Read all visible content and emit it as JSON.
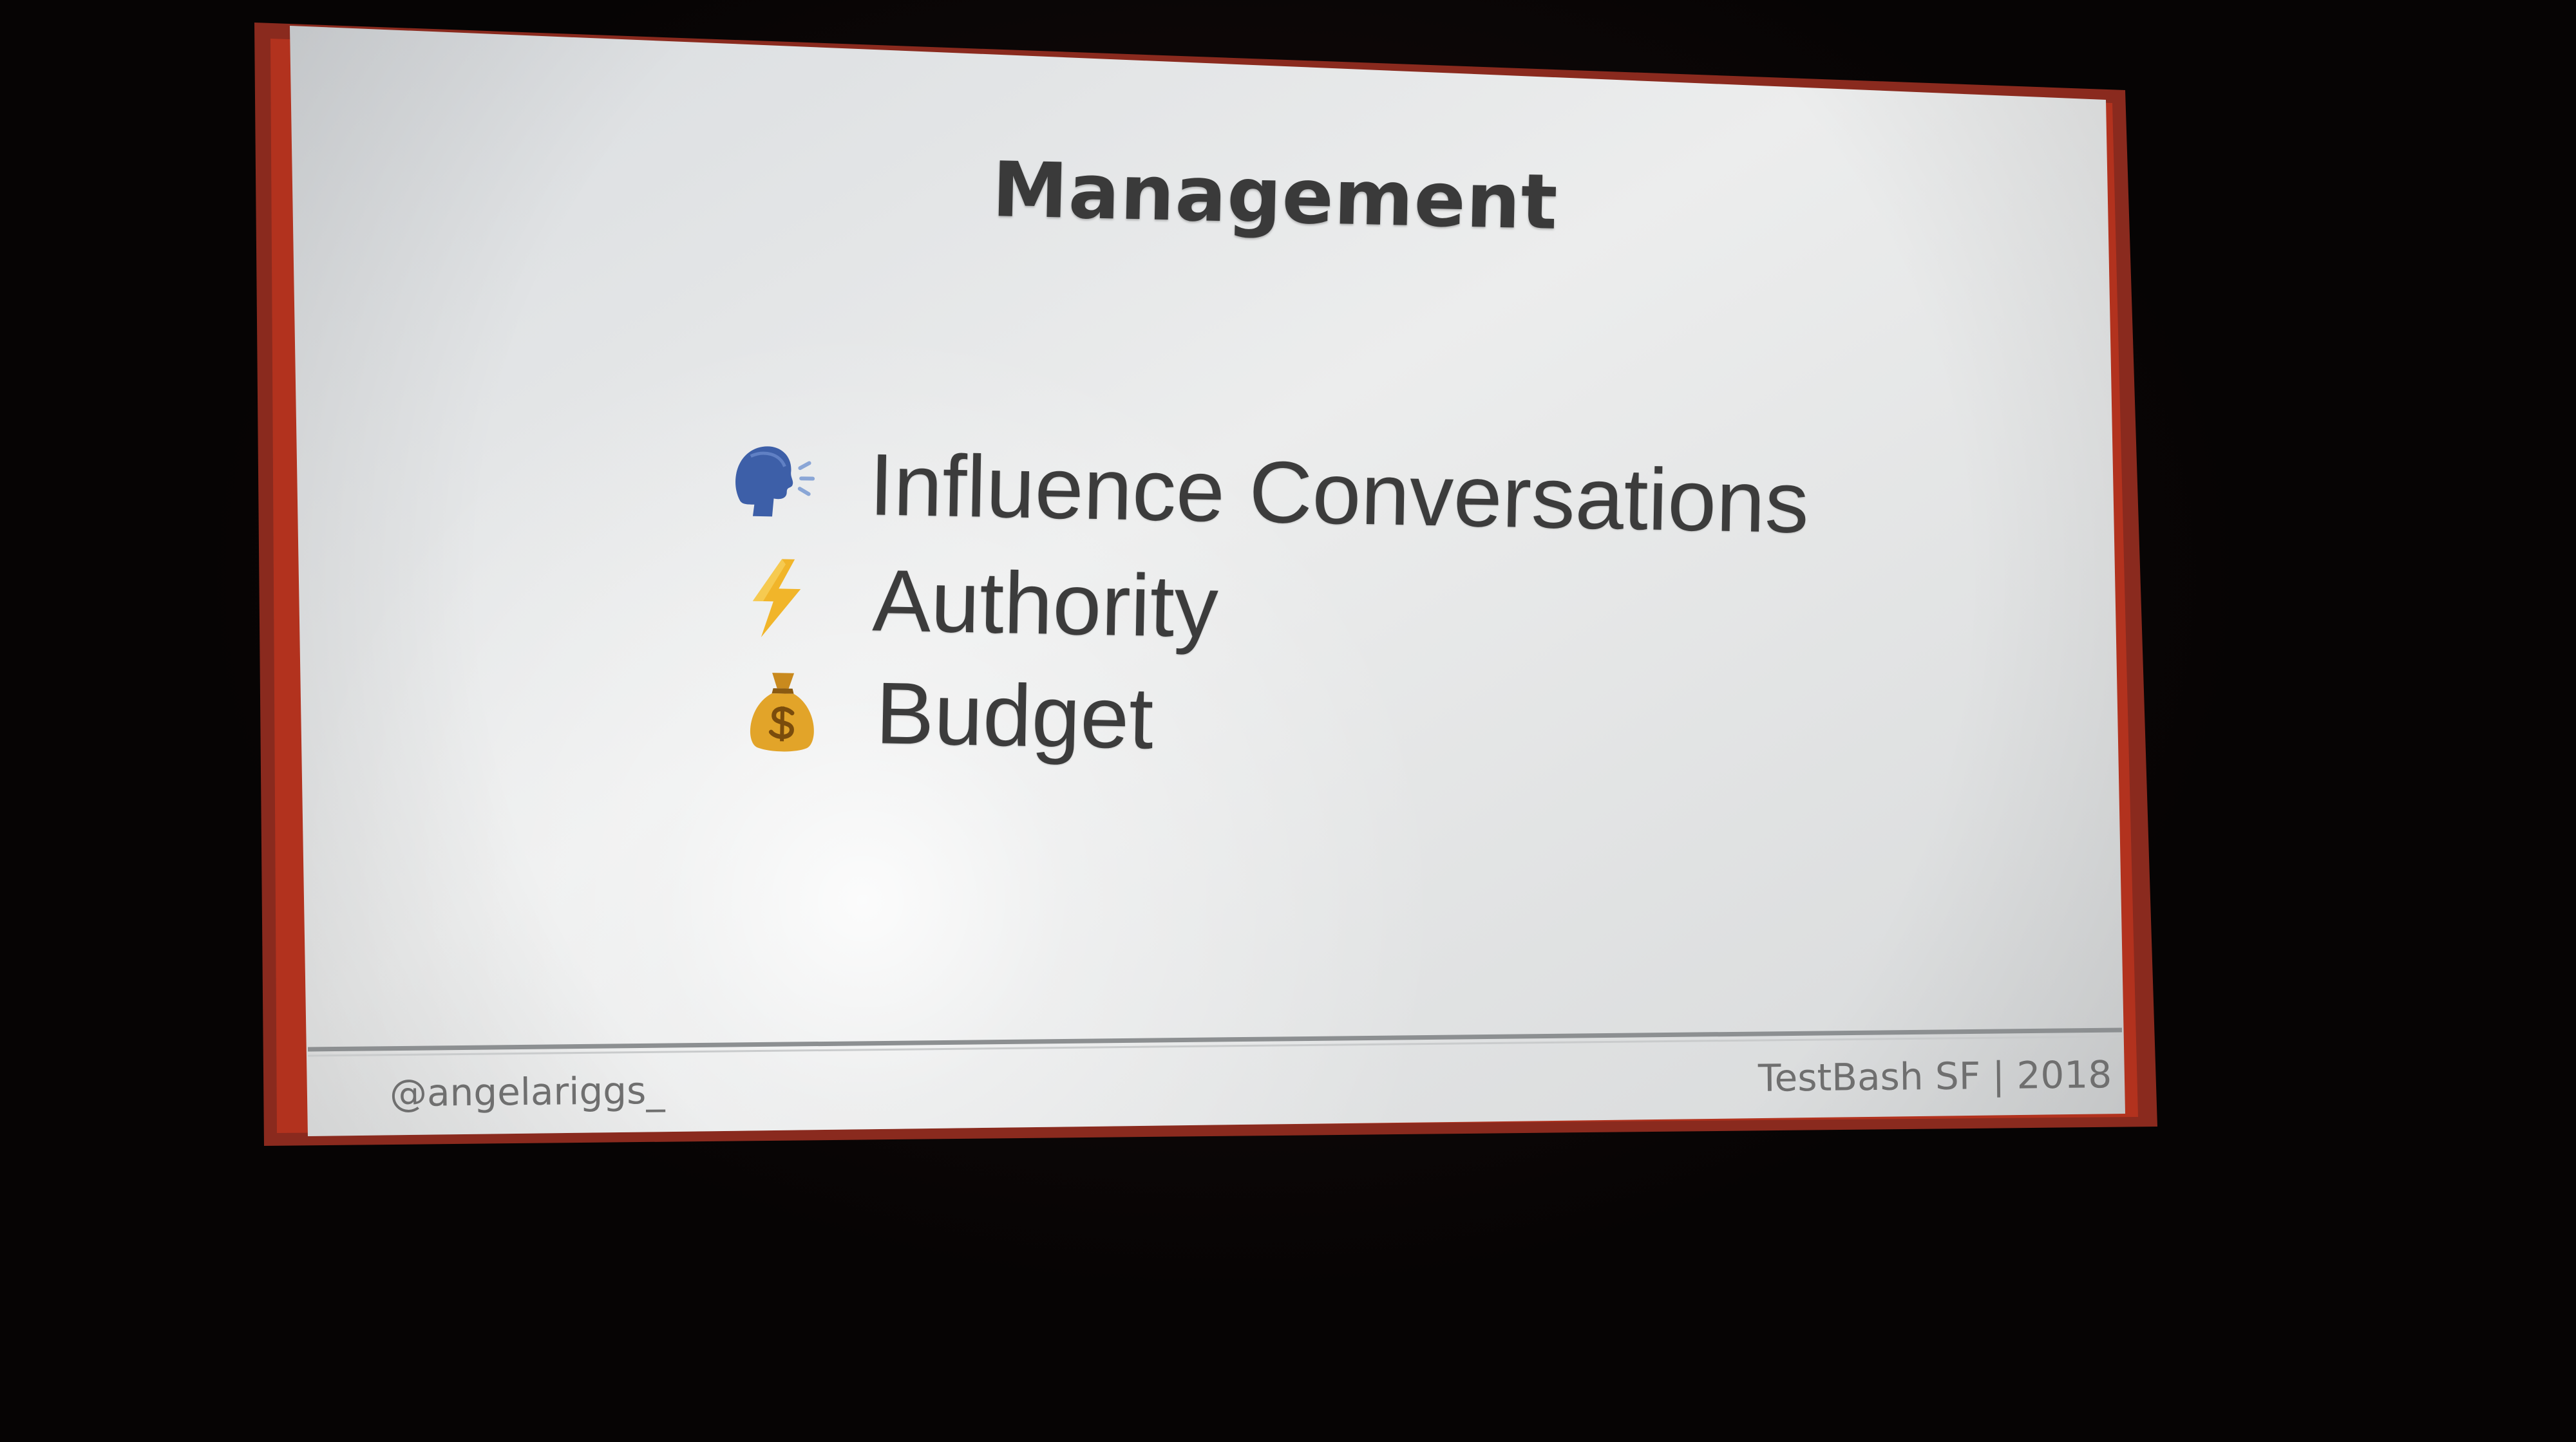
{
  "slide": {
    "title": "Management",
    "bullets": [
      {
        "icon": "speaking-head-icon",
        "text": "Influence Conversations"
      },
      {
        "icon": "lightning-bolt-icon",
        "text": "Authority"
      },
      {
        "icon": "money-bag-icon",
        "text": "Budget"
      }
    ],
    "footer": {
      "handle": "@angelariggs_",
      "event": "TestBash SF | 2018"
    }
  },
  "colors": {
    "accent_border": "#b8341f",
    "slide_background": "#e8e9ea",
    "text": "#3a3a3a"
  }
}
